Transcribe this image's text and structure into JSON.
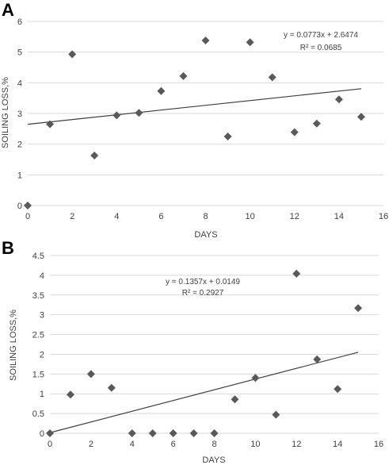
{
  "chart_data": [
    {
      "type": "scatter",
      "panel_label": "A",
      "xlabel": "DAYS",
      "ylabel": "SOILING LOSS,%",
      "xlim": [
        0,
        16
      ],
      "ylim": [
        0,
        6
      ],
      "xticks": [
        "0",
        "2",
        "4",
        "6",
        "8",
        "10",
        "12",
        "14",
        "16"
      ],
      "yticks": [
        "0",
        "1",
        "2",
        "3",
        "4",
        "5",
        "6"
      ],
      "grid": "horizontal",
      "marker": "diamond",
      "marker_color": "#595959",
      "trendline_color": "#404040",
      "x": [
        0,
        1,
        2,
        3,
        4,
        5,
        6,
        7,
        8,
        9,
        10,
        11,
        12,
        13,
        14,
        15
      ],
      "y": [
        0,
        2.65,
        4.93,
        1.63,
        2.94,
        3.02,
        3.73,
        4.22,
        5.38,
        2.25,
        5.32,
        4.18,
        2.39,
        2.67,
        3.46,
        2.89
      ],
      "trendline": {
        "slope": 0.0773,
        "intercept": 2.6474,
        "x_range": [
          0,
          15
        ]
      },
      "equation": "y = 0.0773x + 2.6474",
      "r_squared": "R² = 0.0685"
    },
    {
      "type": "scatter",
      "panel_label": "B",
      "xlabel": "DAYS",
      "ylabel": "SOILING LOSS,%",
      "xlim": [
        0,
        16
      ],
      "ylim": [
        0,
        4.5
      ],
      "xticks": [
        "0",
        "2",
        "4",
        "6",
        "8",
        "10",
        "12",
        "14",
        "16"
      ],
      "yticks": [
        "0",
        "0.5",
        "1",
        "1.5",
        "2",
        "2.5",
        "3",
        "3.5",
        "4",
        "4.5"
      ],
      "grid": "horizontal",
      "marker": "diamond",
      "marker_color": "#595959",
      "trendline_color": "#404040",
      "x": [
        0,
        1,
        2,
        3,
        4,
        5,
        6,
        7,
        8,
        9,
        10,
        11,
        12,
        13,
        14,
        15
      ],
      "y": [
        0,
        0.98,
        1.5,
        1.15,
        0,
        0,
        0,
        0,
        0,
        0.86,
        1.4,
        0.47,
        4.04,
        1.87,
        1.12,
        3.17
      ],
      "trendline": {
        "slope": 0.1357,
        "intercept": 0.0149,
        "x_range": [
          0,
          15
        ]
      },
      "equation": "y = 0.1357x + 0.0149",
      "r_squared": "R² = 0.2927"
    }
  ]
}
